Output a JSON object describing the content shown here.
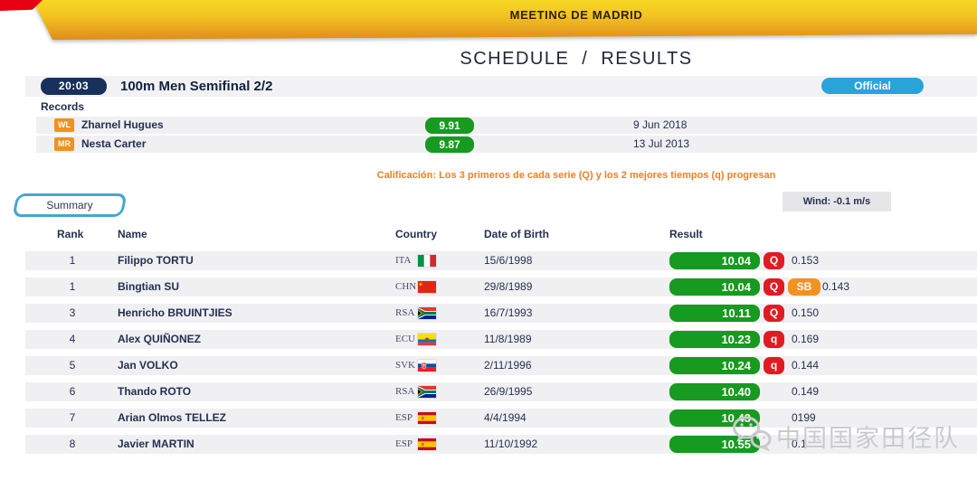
{
  "header": {
    "banner_title": "MEETING DE MADRID",
    "schedule_label": "SCHEDULE",
    "separator": "/",
    "results_label": "RESULTS",
    "time": "20:03",
    "event_title": "100m Men Semifinal 2/2",
    "official_label": "Official"
  },
  "records": {
    "label": "Records",
    "rows": [
      {
        "tag": "WL",
        "name": "Zharnel Hugues",
        "mark": "9.91",
        "date": "9 Jun 2018"
      },
      {
        "tag": "MR",
        "name": "Nesta Carter",
        "mark": "9.87",
        "date": "13 Jul 2013"
      }
    ]
  },
  "qualification_note": "Calificación: Los 3 primeros de cada serie (Q) y los 2 mejores tiempos (q) progresan",
  "tab": {
    "label": "Summary"
  },
  "wind": {
    "label": "Wind: -0.1 m/s"
  },
  "results_table": {
    "columns": {
      "rank": "Rank",
      "name": "Name",
      "country": "Country",
      "dob": "Date of Birth",
      "result": "Result"
    },
    "rows": [
      {
        "rank": "1",
        "name": "Filippo TORTU",
        "country": "ITA",
        "flag": "ita",
        "dob": "15/6/1998",
        "result": "10.04",
        "qual": "Q",
        "sb": "",
        "reaction": "0.153"
      },
      {
        "rank": "1",
        "name": "Bingtian SU",
        "country": "CHN",
        "flag": "chn",
        "dob": "29/8/1989",
        "result": "10.04",
        "qual": "Q",
        "sb": "SB",
        "reaction": "0.143"
      },
      {
        "rank": "3",
        "name": "Henricho BRUINTJIES",
        "country": "RSA",
        "flag": "rsa",
        "dob": "16/7/1993",
        "result": "10.11",
        "qual": "Q",
        "sb": "",
        "reaction": "0.150"
      },
      {
        "rank": "4",
        "name": "Alex QUIÑONEZ",
        "country": "ECU",
        "flag": "ecu",
        "dob": "11/8/1989",
        "result": "10.23",
        "qual": "q",
        "sb": "",
        "reaction": "0.169"
      },
      {
        "rank": "5",
        "name": "Jan VOLKO",
        "country": "SVK",
        "flag": "svk",
        "dob": "2/11/1996",
        "result": "10.24",
        "qual": "q",
        "sb": "",
        "reaction": "0.144"
      },
      {
        "rank": "6",
        "name": "Thando ROTO",
        "country": "RSA",
        "flag": "rsa",
        "dob": "26/9/1995",
        "result": "10.40",
        "qual": "",
        "sb": "",
        "reaction": "0.149"
      },
      {
        "rank": "7",
        "name": "Arian Olmos TELLEZ",
        "country": "ESP",
        "flag": "esp",
        "dob": "4/4/1994",
        "result": "10.43",
        "qual": "",
        "sb": "",
        "reaction": "0199"
      },
      {
        "rank": "8",
        "name": "Javier MARTIN",
        "country": "ESP",
        "flag": "esp",
        "dob": "11/10/1992",
        "result": "10.55",
        "qual": "",
        "sb": "",
        "reaction": "0.1"
      }
    ]
  },
  "watermark": {
    "logo_icon": "wechat-bubbles-icon",
    "text": "中国国家田径队"
  },
  "colors": {
    "banner_yellow_top": "#f7d825",
    "banner_orange_bottom": "#e08d1c",
    "accent_red": "#e60012",
    "navy_text": "#233050",
    "time_badge_navy": "#17305c",
    "official_blue": "#2aa3da",
    "record_tag_orange": "#f0921e",
    "result_green": "#169a1f",
    "qualify_red": "#e11b22",
    "season_best_orange": "#f59120",
    "note_orange": "#ee7f1f",
    "tab_border_blue": "#43a7d2",
    "row_gray": "#f0f0f3",
    "wind_box_gray": "#e6e6e9",
    "watermark_gray": "#c9cacc"
  }
}
